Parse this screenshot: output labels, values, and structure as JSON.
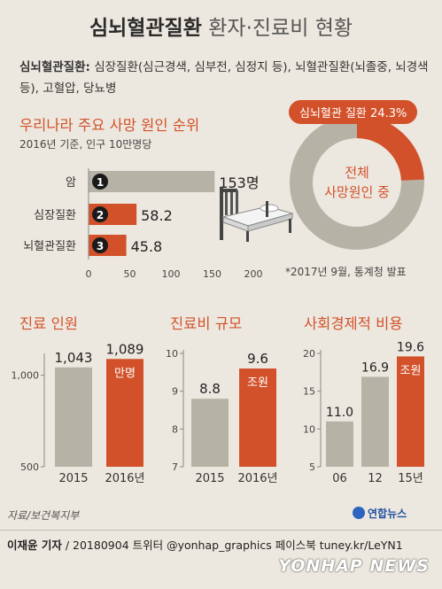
{
  "header": {
    "title_main": "심뇌혈관질환",
    "title_sub": "환자·진료비 현황"
  },
  "definition": {
    "label": "심뇌혈관질환:",
    "text": "심장질환(심근경색, 심부전, 심정지 등), 뇌혈관질환(뇌졸중, 뇌경색 등), 고혈압, 당뇨병"
  },
  "colors": {
    "accent": "#d2512a",
    "gray_bar": "#b7b2a6",
    "background": "#ede8df"
  },
  "icons": [
    "hospital-bed-icon",
    "donut-ring-icon",
    "yonhap-logo-icon"
  ],
  "donut": {
    "badge": "심뇌혈관 질환 24.3%",
    "percent": 24.3,
    "center_line1": "전체",
    "center_line2": "사망원인 중",
    "note": "*2017년 9월, 통계청 발표"
  },
  "chart_data": [
    {
      "type": "bar",
      "orientation": "horizontal",
      "title": "우리나라 주요 사망 원인 순위",
      "subtitle": "2016년 기준, 인구 10만명당",
      "categories": [
        "암",
        "심장질환",
        "뇌혈관질환"
      ],
      "ranks": [
        "1",
        "2",
        "3"
      ],
      "values": [
        153,
        58.2,
        45.8
      ],
      "value_labels": [
        "153명",
        "58.2",
        "45.8"
      ],
      "xlim": [
        0,
        200
      ],
      "xticks": [
        "0",
        "50",
        "100",
        "150",
        "200"
      ]
    },
    {
      "type": "bar",
      "title": "진료 인원",
      "categories": [
        "2015",
        "2016년"
      ],
      "values": [
        1043,
        1089
      ],
      "value_labels": [
        "1,043",
        "1,089"
      ],
      "unit": "만명",
      "ylim": [
        500,
        1100
      ],
      "yticks": [
        "1,000",
        "500"
      ],
      "ytick_values": [
        1000,
        500
      ]
    },
    {
      "type": "bar",
      "title": "진료비 규모",
      "categories": [
        "2015",
        "2016년"
      ],
      "values": [
        8.8,
        9.6
      ],
      "value_labels": [
        "8.8",
        "9.6"
      ],
      "unit": "조원",
      "ylim": [
        7,
        10
      ],
      "yticks": [
        "10",
        "9",
        "8",
        "7"
      ],
      "ytick_values": [
        10,
        9,
        8,
        7
      ]
    },
    {
      "type": "bar",
      "title": "사회경제적 비용",
      "categories": [
        "06",
        "12",
        "15년"
      ],
      "values": [
        11.0,
        16.9,
        19.6
      ],
      "value_labels": [
        "11.0",
        "16.9",
        "19.6"
      ],
      "unit": "조원",
      "ylim": [
        5,
        20
      ],
      "yticks": [
        "20",
        "15",
        "10",
        "5"
      ],
      "ytick_values": [
        20,
        15,
        10,
        5
      ]
    }
  ],
  "footer": {
    "source": "자료/보건복지부",
    "logo_text": "연합뉴스",
    "credit_name": "이재윤 기자",
    "credit_rest": " / 20180904   트위터 @yonhap_graphics  페이스북 tuney.kr/LeYN1",
    "watermark": "YONHAP NEWS"
  }
}
